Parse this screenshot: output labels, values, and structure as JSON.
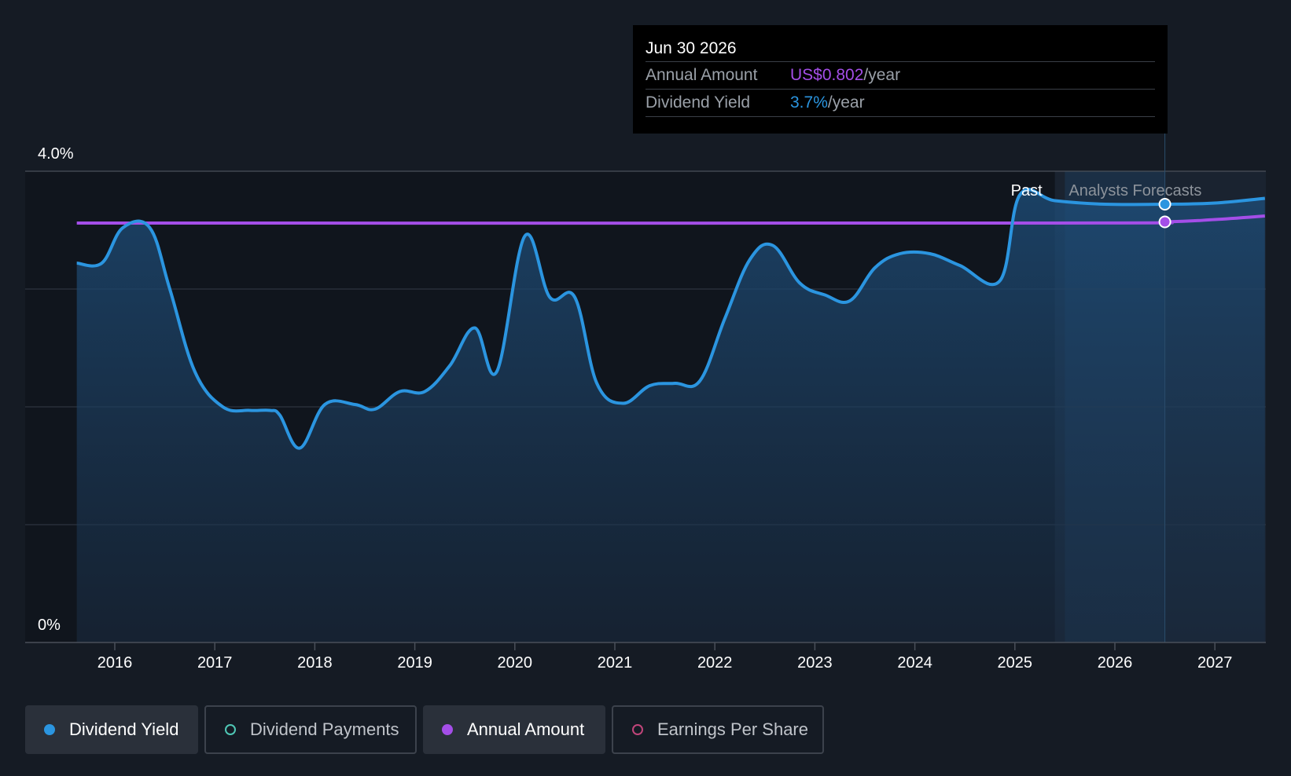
{
  "tooltip": {
    "date": "Jun 30 2026",
    "rows": [
      {
        "label": "Annual Amount",
        "value": "US$0.802",
        "unit": "/year"
      },
      {
        "label": "Dividend Yield",
        "value": "3.7%",
        "unit": "/year"
      }
    ]
  },
  "region_labels": {
    "past": "Past",
    "forecast": "Analysts Forecasts"
  },
  "legend": [
    {
      "label": "Dividend Yield",
      "color": "#2b95e0",
      "filled": true,
      "active": true
    },
    {
      "label": "Dividend Payments",
      "color": "#4fc7b5",
      "filled": false,
      "active": false
    },
    {
      "label": "Annual Amount",
      "color": "#a44ee8",
      "filled": true,
      "active": true
    },
    {
      "label": "Earnings Per Share",
      "color": "#c0457a",
      "filled": false,
      "active": false
    }
  ],
  "chart_data": {
    "type": "line",
    "ylim": [
      0,
      4.0
    ],
    "y_tick_labels": [
      {
        "value": 4.0,
        "label": "4.0%"
      },
      {
        "value": 0,
        "label": "0%"
      }
    ],
    "gridlines": [
      1.0,
      2.0,
      3.0,
      4.0
    ],
    "xlim": [
      2015.5,
      2027.5
    ],
    "x_ticks": [
      2016,
      2017,
      2018,
      2019,
      2020,
      2021,
      2022,
      2023,
      2024,
      2025,
      2026,
      2027
    ],
    "past_until": 2025.4,
    "forecast_start": 2025.5,
    "cursor_x": 2026.5,
    "series": [
      {
        "name": "Dividend Yield",
        "color": "#2b95e0",
        "area": true,
        "points": [
          [
            2015.62,
            3.22
          ],
          [
            2015.87,
            3.22
          ],
          [
            2016.08,
            3.52
          ],
          [
            2016.35,
            3.52
          ],
          [
            2016.55,
            3.0
          ],
          [
            2016.8,
            2.3
          ],
          [
            2017.08,
            2.0
          ],
          [
            2017.35,
            1.97
          ],
          [
            2017.55,
            1.97
          ],
          [
            2017.65,
            1.93
          ],
          [
            2017.85,
            1.65
          ],
          [
            2018.1,
            2.02
          ],
          [
            2018.4,
            2.02
          ],
          [
            2018.6,
            1.98
          ],
          [
            2018.85,
            2.13
          ],
          [
            2019.1,
            2.13
          ],
          [
            2019.35,
            2.35
          ],
          [
            2019.6,
            2.67
          ],
          [
            2019.82,
            2.3
          ],
          [
            2020.1,
            3.45
          ],
          [
            2020.35,
            2.93
          ],
          [
            2020.6,
            2.93
          ],
          [
            2020.82,
            2.2
          ],
          [
            2021.08,
            2.03
          ],
          [
            2021.35,
            2.18
          ],
          [
            2021.6,
            2.2
          ],
          [
            2021.85,
            2.22
          ],
          [
            2022.1,
            2.75
          ],
          [
            2022.35,
            3.25
          ],
          [
            2022.58,
            3.37
          ],
          [
            2022.85,
            3.05
          ],
          [
            2023.1,
            2.95
          ],
          [
            2023.35,
            2.9
          ],
          [
            2023.6,
            3.18
          ],
          [
            2023.85,
            3.3
          ],
          [
            2024.15,
            3.3
          ],
          [
            2024.45,
            3.2
          ],
          [
            2024.85,
            3.07
          ],
          [
            2025.05,
            3.8
          ],
          [
            2025.4,
            3.75
          ],
          [
            2025.9,
            3.72
          ],
          [
            2026.5,
            3.72
          ],
          [
            2027.0,
            3.73
          ],
          [
            2027.5,
            3.77
          ]
        ]
      },
      {
        "name": "Annual Amount",
        "color": "#a44ee8",
        "area": false,
        "points": [
          [
            2015.62,
            3.56
          ],
          [
            2025.4,
            3.56
          ],
          [
            2026.5,
            3.57
          ],
          [
            2027.0,
            3.59
          ],
          [
            2027.5,
            3.62
          ]
        ]
      }
    ]
  }
}
